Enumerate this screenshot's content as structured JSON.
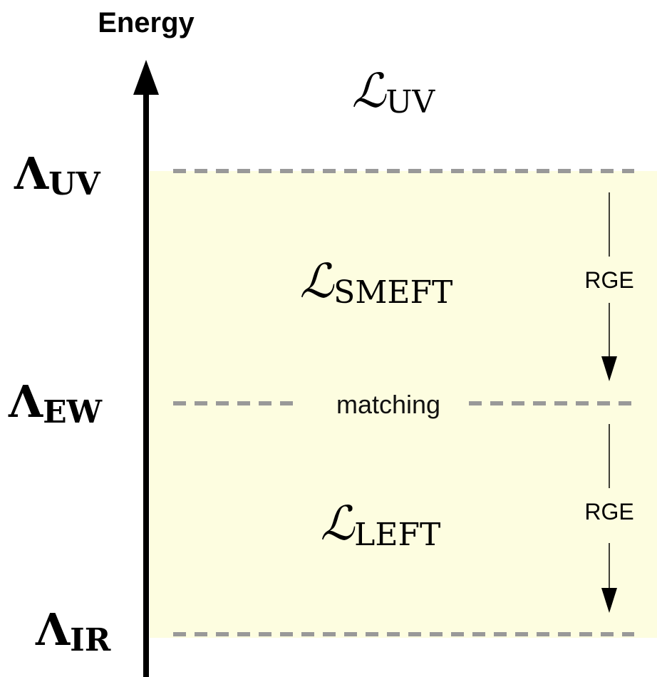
{
  "axis": {
    "label": "Energy"
  },
  "scales": [
    {
      "symbol": "Λ",
      "subscript": "UV"
    },
    {
      "symbol": "Λ",
      "subscript": "EW"
    },
    {
      "symbol": "Λ",
      "subscript": "IR"
    }
  ],
  "regions": [
    {
      "symbol": "ℒ",
      "subscript": "UV"
    },
    {
      "symbol": "ℒ",
      "subscript": "SMEFT"
    },
    {
      "symbol": "ℒ",
      "subscript": "LEFT"
    }
  ],
  "matching": "matching",
  "rge": [
    "RGE",
    "RGE"
  ]
}
